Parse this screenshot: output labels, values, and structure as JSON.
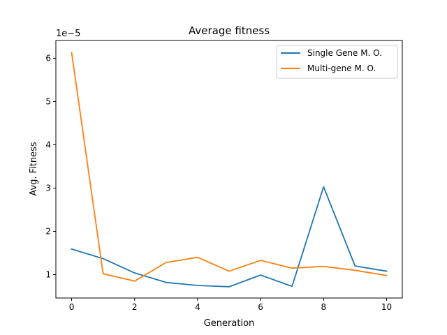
{
  "chart_data": {
    "type": "line",
    "title": "Average fitness",
    "xlabel": "Generation",
    "ylabel": "Avg. Fitness",
    "y_scale_note": "1e−5",
    "xlim": [
      -0.5,
      10.5
    ],
    "ylim": [
      0.46,
      6.41
    ],
    "x_ticks": [
      0,
      2,
      4,
      6,
      8,
      10
    ],
    "y_ticks": [
      1,
      2,
      3,
      4,
      5,
      6
    ],
    "grid": false,
    "legend_position": "upper right",
    "x": [
      0,
      1,
      2,
      3,
      4,
      5,
      6,
      7,
      8,
      9,
      10
    ],
    "series": [
      {
        "name": "Single Gene M. O.",
        "color": "#1f77b4",
        "values": [
          1.59,
          1.37,
          1.04,
          0.82,
          0.75,
          0.72,
          0.99,
          0.73,
          3.03,
          1.2,
          1.08
        ]
      },
      {
        "name": "Multi-gene M. O.",
        "color": "#ff7f0e",
        "values": [
          6.13,
          1.02,
          0.85,
          1.28,
          1.4,
          1.08,
          1.33,
          1.15,
          1.19,
          1.1,
          0.98
        ]
      }
    ]
  }
}
